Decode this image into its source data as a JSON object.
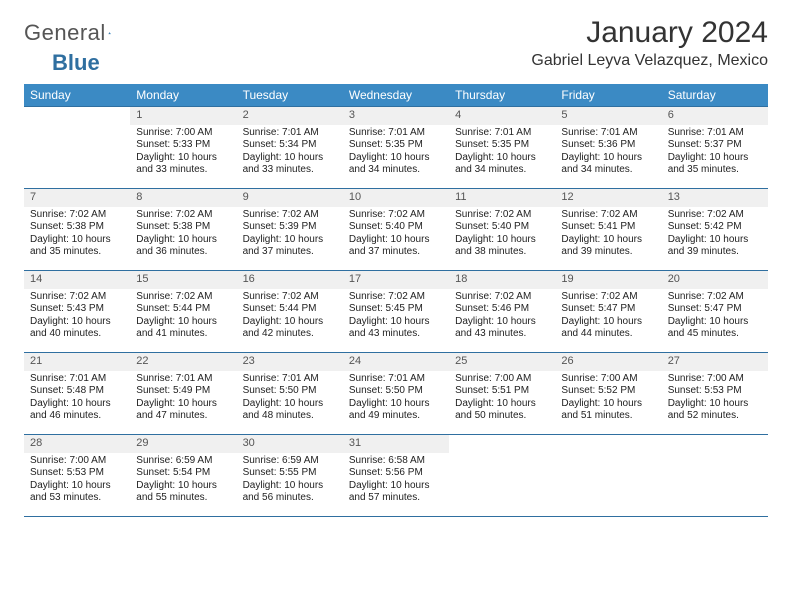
{
  "colors": {
    "header_blue": "#3b8ac4",
    "line_blue": "#2f6fa0",
    "daynum_bg": "#f0f0f0",
    "text": "#222222",
    "page_bg": "#ffffff"
  },
  "logo": {
    "word1": "General",
    "word2": "Blue"
  },
  "title": {
    "month": "January 2024",
    "location": "Gabriel Leyva Velazquez, Mexico"
  },
  "weekdays": [
    "Sunday",
    "Monday",
    "Tuesday",
    "Wednesday",
    "Thursday",
    "Friday",
    "Saturday"
  ],
  "weeks": [
    [
      null,
      {
        "n": "1",
        "sr": "7:00 AM",
        "ss": "5:33 PM",
        "dl": "10 hours and 33 minutes."
      },
      {
        "n": "2",
        "sr": "7:01 AM",
        "ss": "5:34 PM",
        "dl": "10 hours and 33 minutes."
      },
      {
        "n": "3",
        "sr": "7:01 AM",
        "ss": "5:35 PM",
        "dl": "10 hours and 34 minutes."
      },
      {
        "n": "4",
        "sr": "7:01 AM",
        "ss": "5:35 PM",
        "dl": "10 hours and 34 minutes."
      },
      {
        "n": "5",
        "sr": "7:01 AM",
        "ss": "5:36 PM",
        "dl": "10 hours and 34 minutes."
      },
      {
        "n": "6",
        "sr": "7:01 AM",
        "ss": "5:37 PM",
        "dl": "10 hours and 35 minutes."
      }
    ],
    [
      {
        "n": "7",
        "sr": "7:02 AM",
        "ss": "5:38 PM",
        "dl": "10 hours and 35 minutes."
      },
      {
        "n": "8",
        "sr": "7:02 AM",
        "ss": "5:38 PM",
        "dl": "10 hours and 36 minutes."
      },
      {
        "n": "9",
        "sr": "7:02 AM",
        "ss": "5:39 PM",
        "dl": "10 hours and 37 minutes."
      },
      {
        "n": "10",
        "sr": "7:02 AM",
        "ss": "5:40 PM",
        "dl": "10 hours and 37 minutes."
      },
      {
        "n": "11",
        "sr": "7:02 AM",
        "ss": "5:40 PM",
        "dl": "10 hours and 38 minutes."
      },
      {
        "n": "12",
        "sr": "7:02 AM",
        "ss": "5:41 PM",
        "dl": "10 hours and 39 minutes."
      },
      {
        "n": "13",
        "sr": "7:02 AM",
        "ss": "5:42 PM",
        "dl": "10 hours and 39 minutes."
      }
    ],
    [
      {
        "n": "14",
        "sr": "7:02 AM",
        "ss": "5:43 PM",
        "dl": "10 hours and 40 minutes."
      },
      {
        "n": "15",
        "sr": "7:02 AM",
        "ss": "5:44 PM",
        "dl": "10 hours and 41 minutes."
      },
      {
        "n": "16",
        "sr": "7:02 AM",
        "ss": "5:44 PM",
        "dl": "10 hours and 42 minutes."
      },
      {
        "n": "17",
        "sr": "7:02 AM",
        "ss": "5:45 PM",
        "dl": "10 hours and 43 minutes."
      },
      {
        "n": "18",
        "sr": "7:02 AM",
        "ss": "5:46 PM",
        "dl": "10 hours and 43 minutes."
      },
      {
        "n": "19",
        "sr": "7:02 AM",
        "ss": "5:47 PM",
        "dl": "10 hours and 44 minutes."
      },
      {
        "n": "20",
        "sr": "7:02 AM",
        "ss": "5:47 PM",
        "dl": "10 hours and 45 minutes."
      }
    ],
    [
      {
        "n": "21",
        "sr": "7:01 AM",
        "ss": "5:48 PM",
        "dl": "10 hours and 46 minutes."
      },
      {
        "n": "22",
        "sr": "7:01 AM",
        "ss": "5:49 PM",
        "dl": "10 hours and 47 minutes."
      },
      {
        "n": "23",
        "sr": "7:01 AM",
        "ss": "5:50 PM",
        "dl": "10 hours and 48 minutes."
      },
      {
        "n": "24",
        "sr": "7:01 AM",
        "ss": "5:50 PM",
        "dl": "10 hours and 49 minutes."
      },
      {
        "n": "25",
        "sr": "7:00 AM",
        "ss": "5:51 PM",
        "dl": "10 hours and 50 minutes."
      },
      {
        "n": "26",
        "sr": "7:00 AM",
        "ss": "5:52 PM",
        "dl": "10 hours and 51 minutes."
      },
      {
        "n": "27",
        "sr": "7:00 AM",
        "ss": "5:53 PM",
        "dl": "10 hours and 52 minutes."
      }
    ],
    [
      {
        "n": "28",
        "sr": "7:00 AM",
        "ss": "5:53 PM",
        "dl": "10 hours and 53 minutes."
      },
      {
        "n": "29",
        "sr": "6:59 AM",
        "ss": "5:54 PM",
        "dl": "10 hours and 55 minutes."
      },
      {
        "n": "30",
        "sr": "6:59 AM",
        "ss": "5:55 PM",
        "dl": "10 hours and 56 minutes."
      },
      {
        "n": "31",
        "sr": "6:58 AM",
        "ss": "5:56 PM",
        "dl": "10 hours and 57 minutes."
      },
      null,
      null,
      null
    ]
  ],
  "labels": {
    "sunrise": "Sunrise:",
    "sunset": "Sunset:",
    "daylight": "Daylight:"
  }
}
